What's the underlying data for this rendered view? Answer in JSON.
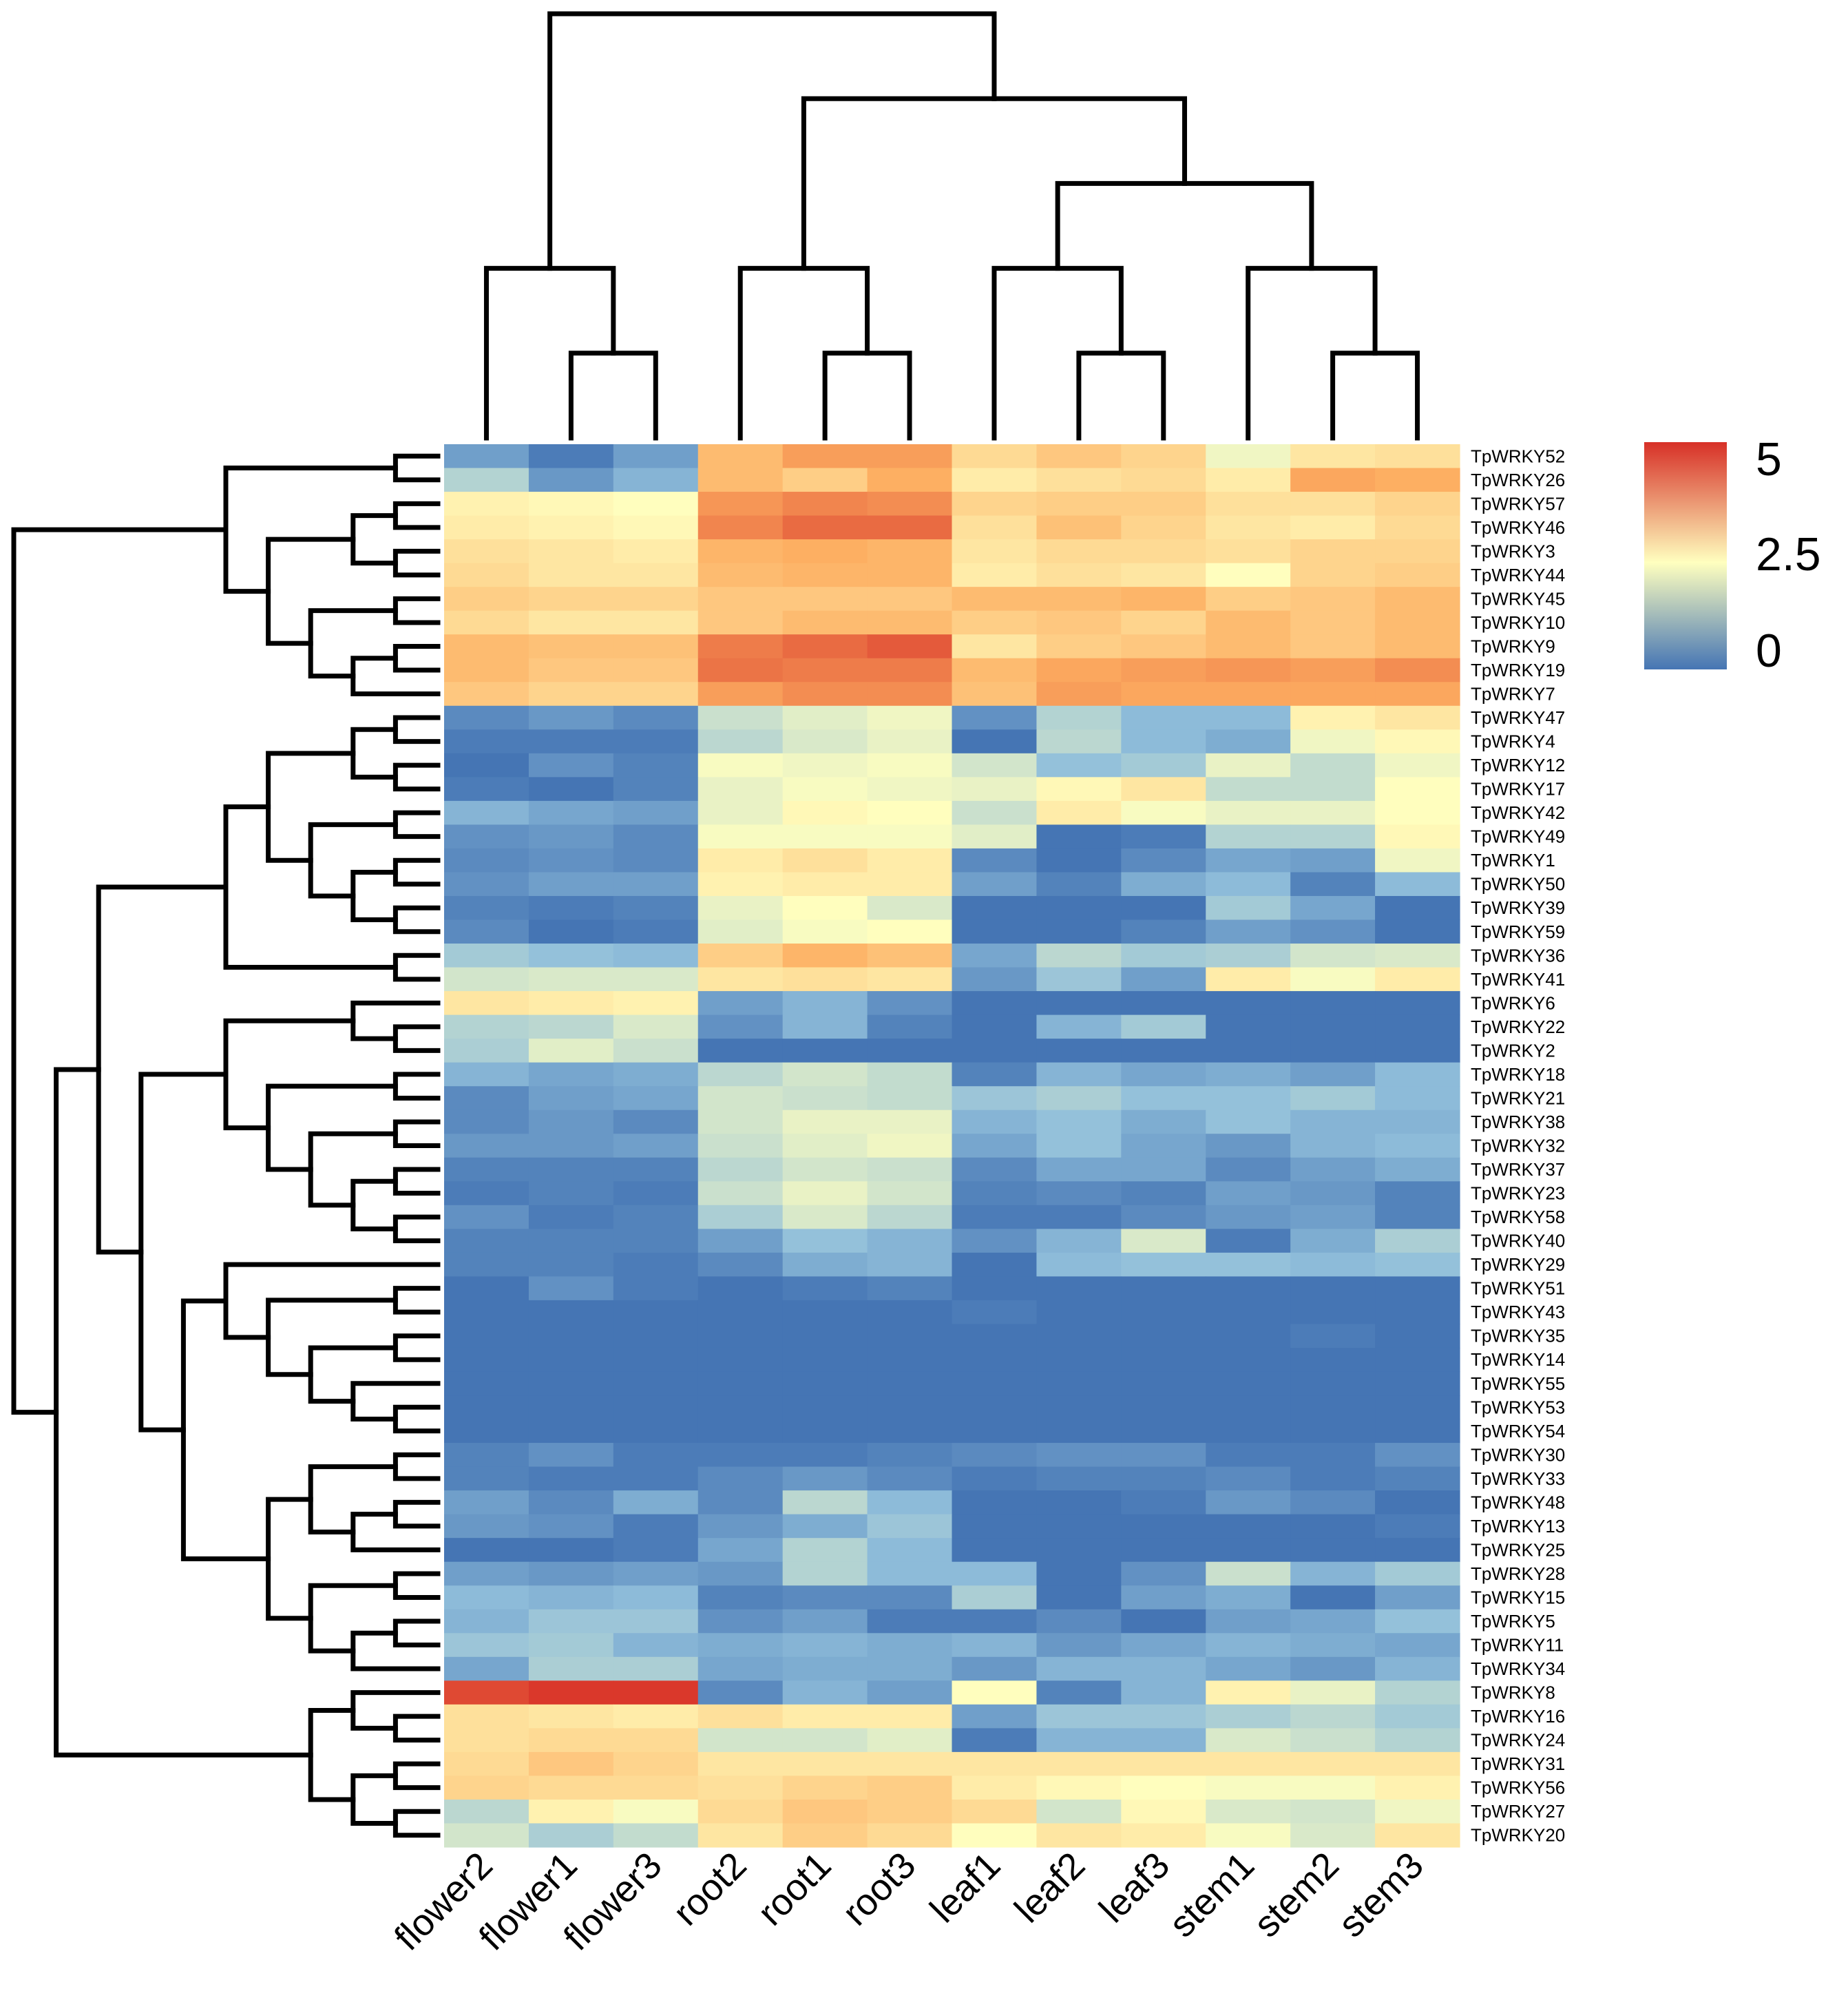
{
  "chart_data": {
    "type": "heatmap",
    "title": "",
    "xlabel": "",
    "ylabel": "",
    "columns": [
      "flower2",
      "flower1",
      "flower3",
      "root2",
      "root1",
      "root3",
      "leaf1",
      "leaf2",
      "leaf3",
      "stem1",
      "stem2",
      "stem3"
    ],
    "rows": [
      "TpWRKY52",
      "TpWRKY26",
      "TpWRKY57",
      "TpWRKY46",
      "TpWRKY3",
      "TpWRKY44",
      "TpWRKY45",
      "TpWRKY10",
      "TpWRKY9",
      "TpWRKY19",
      "TpWRKY7",
      "TpWRKY47",
      "TpWRKY4",
      "TpWRKY12",
      "TpWRKY17",
      "TpWRKY42",
      "TpWRKY49",
      "TpWRKY1",
      "TpWRKY50",
      "TpWRKY39",
      "TpWRKY59",
      "TpWRKY36",
      "TpWRKY41",
      "TpWRKY6",
      "TpWRKY22",
      "TpWRKY2",
      "TpWRKY18",
      "TpWRKY21",
      "TpWRKY38",
      "TpWRKY32",
      "TpWRKY37",
      "TpWRKY23",
      "TpWRKY58",
      "TpWRKY40",
      "TpWRKY29",
      "TpWRKY51",
      "TpWRKY43",
      "TpWRKY35",
      "TpWRKY14",
      "TpWRKY55",
      "TpWRKY53",
      "TpWRKY54",
      "TpWRKY30",
      "TpWRKY33",
      "TpWRKY48",
      "TpWRKY13",
      "TpWRKY25",
      "TpWRKY28",
      "TpWRKY15",
      "TpWRKY5",
      "TpWRKY11",
      "TpWRKY34",
      "TpWRKY8",
      "TpWRKY16",
      "TpWRKY24",
      "TpWRKY31",
      "TpWRKY56",
      "TpWRKY27",
      "TpWRKY20"
    ],
    "values": [
      [
        0.6,
        0.1,
        0.6,
        3.6,
        4.0,
        4.0,
        3.1,
        3.4,
        3.2,
        2.3,
        2.9,
        3.0
      ],
      [
        1.5,
        0.5,
        0.9,
        3.6,
        3.3,
        3.8,
        2.8,
        3.0,
        3.1,
        2.8,
        3.9,
        3.8
      ],
      [
        2.7,
        2.6,
        2.5,
        4.1,
        4.3,
        4.2,
        3.2,
        3.3,
        3.3,
        3.0,
        3.0,
        3.2
      ],
      [
        2.8,
        2.7,
        2.6,
        4.3,
        4.6,
        4.6,
        3.0,
        3.5,
        3.2,
        2.9,
        2.8,
        3.1
      ],
      [
        3.0,
        2.9,
        2.8,
        3.7,
        3.8,
        3.7,
        2.9,
        3.1,
        3.1,
        3.0,
        3.2,
        3.2
      ],
      [
        3.1,
        2.9,
        2.9,
        3.6,
        3.7,
        3.7,
        2.8,
        3.0,
        2.9,
        2.5,
        3.2,
        3.3
      ],
      [
        3.3,
        3.2,
        3.2,
        3.4,
        3.4,
        3.4,
        3.6,
        3.6,
        3.7,
        3.3,
        3.4,
        3.6
      ],
      [
        3.1,
        2.9,
        2.9,
        3.4,
        3.6,
        3.6,
        3.3,
        3.4,
        3.2,
        3.6,
        3.4,
        3.6
      ],
      [
        3.6,
        3.5,
        3.5,
        4.4,
        4.6,
        4.8,
        2.9,
        3.3,
        3.4,
        3.6,
        3.4,
        3.6
      ],
      [
        3.6,
        3.4,
        3.4,
        4.5,
        4.4,
        4.4,
        3.6,
        3.9,
        4.0,
        4.1,
        4.0,
        4.2
      ],
      [
        3.4,
        3.2,
        3.2,
        4.0,
        4.2,
        4.2,
        3.5,
        4.0,
        3.9,
        3.9,
        3.9,
        3.9
      ],
      [
        0.3,
        0.5,
        0.3,
        1.8,
        2.1,
        2.3,
        0.4,
        1.5,
        1.0,
        1.0,
        2.7,
        2.9
      ],
      [
        0.1,
        0.1,
        0.1,
        1.6,
        2.0,
        2.2,
        0.0,
        1.6,
        1.0,
        0.8,
        2.3,
        2.6
      ],
      [
        0.0,
        0.4,
        0.2,
        2.4,
        2.3,
        2.4,
        1.9,
        1.1,
        1.3,
        2.2,
        1.7,
        2.3
      ],
      [
        0.1,
        0.0,
        0.2,
        2.2,
        2.4,
        2.3,
        2.2,
        2.6,
        2.9,
        1.7,
        1.7,
        2.5
      ],
      [
        0.9,
        0.7,
        0.6,
        2.2,
        2.6,
        2.5,
        1.8,
        2.8,
        2.4,
        2.2,
        2.2,
        2.5
      ],
      [
        0.4,
        0.5,
        0.3,
        2.4,
        2.4,
        2.4,
        2.1,
        0.0,
        0.1,
        1.5,
        1.5,
        2.6
      ],
      [
        0.3,
        0.4,
        0.3,
        2.8,
        3.0,
        2.8,
        0.3,
        0.0,
        0.3,
        0.7,
        0.6,
        2.3
      ],
      [
        0.4,
        0.6,
        0.6,
        2.7,
        2.8,
        2.8,
        0.6,
        0.2,
        0.8,
        1.0,
        0.2,
        1.0
      ],
      [
        0.2,
        0.1,
        0.2,
        2.2,
        2.5,
        2.0,
        0.0,
        0.0,
        0.0,
        1.3,
        0.7,
        0.0
      ],
      [
        0.3,
        0.0,
        0.1,
        2.1,
        2.4,
        2.5,
        0.0,
        0.0,
        0.2,
        0.6,
        0.4,
        0.0
      ],
      [
        1.3,
        1.1,
        1.0,
        3.3,
        3.7,
        3.5,
        0.7,
        1.6,
        1.3,
        1.4,
        1.9,
        2.0
      ],
      [
        1.9,
        2.0,
        2.0,
        2.9,
        3.0,
        2.9,
        0.5,
        1.2,
        0.6,
        2.8,
        2.4,
        2.8
      ],
      [
        2.9,
        2.8,
        2.7,
        0.6,
        0.9,
        0.4,
        0.0,
        0.0,
        0.0,
        0.0,
        0.0,
        0.0
      ],
      [
        1.5,
        1.6,
        2.0,
        0.4,
        0.9,
        0.2,
        0.0,
        0.9,
        1.3,
        0.0,
        0.0,
        0.0
      ],
      [
        1.4,
        2.1,
        1.8,
        0.0,
        0.0,
        0.0,
        0.0,
        0.0,
        0.0,
        0.0,
        0.0,
        0.0
      ],
      [
        0.9,
        0.7,
        0.8,
        1.6,
        1.9,
        1.7,
        0.2,
        0.9,
        0.7,
        0.8,
        0.6,
        1.0
      ],
      [
        0.3,
        0.6,
        0.7,
        1.9,
        1.8,
        1.7,
        1.2,
        1.4,
        1.1,
        1.1,
        1.3,
        1.0
      ],
      [
        0.3,
        0.5,
        0.3,
        1.9,
        2.2,
        2.2,
        0.9,
        1.1,
        0.8,
        1.1,
        0.9,
        0.9
      ],
      [
        0.5,
        0.5,
        0.6,
        1.8,
        2.1,
        2.3,
        0.7,
        1.1,
        0.7,
        0.5,
        0.9,
        1.0
      ],
      [
        0.2,
        0.2,
        0.2,
        1.6,
        1.9,
        1.8,
        0.3,
        0.7,
        0.7,
        0.3,
        0.6,
        0.8
      ],
      [
        0.1,
        0.2,
        0.1,
        1.8,
        2.2,
        1.9,
        0.2,
        0.3,
        0.2,
        0.6,
        0.5,
        0.2
      ],
      [
        0.4,
        0.1,
        0.2,
        1.4,
        2.0,
        1.6,
        0.1,
        0.1,
        0.3,
        0.5,
        0.6,
        0.2
      ],
      [
        0.2,
        0.2,
        0.2,
        0.6,
        1.1,
        0.9,
        0.4,
        0.9,
        2.0,
        0.1,
        0.8,
        1.4
      ],
      [
        0.2,
        0.2,
        0.1,
        0.3,
        0.8,
        0.9,
        0.0,
        1.0,
        1.1,
        1.1,
        1.0,
        1.1
      ],
      [
        0.0,
        0.4,
        0.1,
        0.0,
        0.1,
        0.2,
        0.0,
        0.0,
        0.0,
        0.0,
        0.0,
        0.0
      ],
      [
        0.0,
        0.0,
        0.0,
        0.0,
        0.0,
        0.0,
        0.1,
        0.0,
        0.0,
        0.0,
        0.0,
        0.0
      ],
      [
        0.0,
        0.0,
        0.0,
        0.0,
        0.0,
        0.0,
        0.0,
        0.0,
        0.0,
        0.0,
        0.1,
        0.0
      ],
      [
        0.0,
        0.0,
        0.0,
        0.0,
        0.0,
        0.0,
        0.0,
        0.0,
        0.0,
        0.0,
        0.0,
        0.0
      ],
      [
        0.0,
        0.0,
        0.0,
        0.0,
        0.0,
        0.0,
        0.0,
        0.0,
        0.0,
        0.0,
        0.0,
        0.0
      ],
      [
        0.0,
        0.0,
        0.0,
        0.0,
        0.0,
        0.0,
        0.0,
        0.0,
        0.0,
        0.0,
        0.0,
        0.0
      ],
      [
        0.0,
        0.0,
        0.0,
        0.0,
        0.0,
        0.0,
        0.0,
        0.0,
        0.0,
        0.0,
        0.0,
        0.0
      ],
      [
        0.2,
        0.4,
        0.1,
        0.1,
        0.1,
        0.2,
        0.3,
        0.4,
        0.4,
        0.1,
        0.1,
        0.4
      ],
      [
        0.2,
        0.1,
        0.1,
        0.3,
        0.5,
        0.3,
        0.1,
        0.2,
        0.2,
        0.3,
        0.1,
        0.2
      ],
      [
        0.6,
        0.3,
        0.8,
        0.3,
        1.6,
        1.0,
        0.0,
        0.0,
        0.1,
        0.5,
        0.3,
        0.0
      ],
      [
        0.5,
        0.4,
        0.1,
        0.5,
        0.8,
        1.2,
        0.0,
        0.0,
        0.0,
        0.0,
        0.0,
        0.1
      ],
      [
        0.0,
        0.0,
        0.1,
        0.7,
        1.5,
        1.0,
        0.0,
        0.0,
        0.0,
        0.0,
        0.0,
        0.0
      ],
      [
        0.6,
        0.5,
        0.6,
        0.5,
        1.5,
        1.0,
        1.0,
        0.0,
        0.4,
        1.8,
        0.9,
        1.3
      ],
      [
        1.0,
        0.9,
        1.0,
        0.2,
        0.3,
        0.3,
        1.4,
        0.0,
        0.6,
        0.8,
        0.0,
        0.6
      ],
      [
        0.9,
        1.2,
        1.2,
        0.4,
        0.6,
        0.1,
        0.1,
        0.3,
        0.0,
        0.6,
        0.7,
        1.1
      ],
      [
        1.2,
        1.3,
        0.9,
        0.8,
        0.9,
        0.8,
        0.9,
        0.5,
        0.7,
        0.9,
        0.8,
        0.7
      ],
      [
        0.7,
        1.4,
        1.4,
        0.7,
        0.8,
        0.8,
        0.5,
        0.9,
        0.9,
        0.7,
        0.5,
        0.9
      ],
      [
        5.0,
        5.2,
        5.2,
        0.3,
        0.9,
        0.6,
        2.5,
        0.2,
        0.9,
        2.7,
        2.2,
        1.5
      ],
      [
        3.0,
        2.9,
        2.8,
        3.0,
        2.8,
        2.8,
        0.6,
        1.2,
        1.2,
        1.4,
        1.6,
        1.3
      ],
      [
        3.0,
        3.1,
        3.1,
        1.9,
        1.9,
        2.1,
        0.1,
        0.9,
        0.9,
        2.0,
        1.8,
        1.5
      ],
      [
        3.1,
        3.4,
        3.2,
        2.9,
        2.9,
        2.9,
        2.9,
        2.9,
        2.9,
        2.9,
        2.9,
        2.9
      ],
      [
        3.2,
        3.1,
        3.1,
        3.0,
        3.2,
        3.3,
        2.8,
        2.6,
        2.5,
        2.4,
        2.4,
        2.7
      ],
      [
        1.6,
        2.7,
        2.4,
        3.1,
        3.4,
        3.3,
        3.1,
        1.9,
        2.6,
        2.0,
        1.9,
        2.3
      ],
      [
        1.9,
        1.4,
        1.7,
        2.9,
        3.3,
        3.1,
        2.5,
        2.9,
        2.8,
        2.4,
        2.0,
        2.9
      ]
    ],
    "colorbar": {
      "ticks": [
        "5",
        "2.5",
        "0"
      ],
      "min": 0,
      "max": 5.3,
      "colors": {
        "low": "#4575b4",
        "mid": "#ffffbf",
        "high": "#d73027"
      }
    }
  }
}
